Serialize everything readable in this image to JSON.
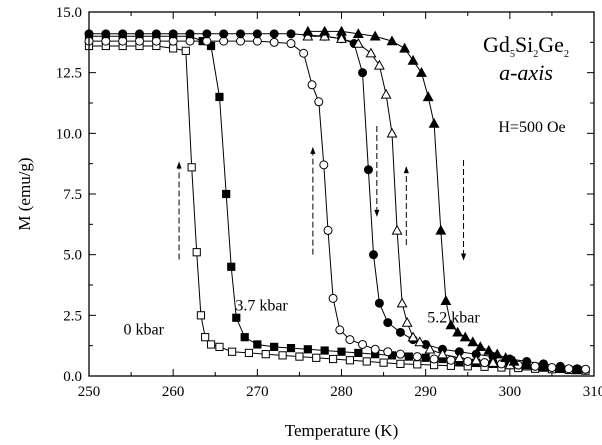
{
  "chart_data": {
    "type": "scatter",
    "title": {
      "formula_parts": [
        "Gd",
        "5",
        "Si",
        "2",
        "Ge",
        "2"
      ],
      "axis": "a-axis"
    },
    "field_label": "H=500 Oe",
    "xlabel": "Temperature (K)",
    "ylabel": "M (emu/g)",
    "xlim": [
      250,
      310
    ],
    "ylim": [
      0,
      15
    ],
    "x_ticks": [
      "250",
      "260",
      "270",
      "280",
      "290",
      "300",
      "310"
    ],
    "y_ticks": [
      "0.0",
      "2.5",
      "5.0",
      "7.5",
      "10.0",
      "12.5",
      "15.0"
    ],
    "series": [
      {
        "marker": "open-square",
        "x": [
          250,
          252,
          254,
          256,
          258,
          260,
          261.5,
          262.2,
          262.8,
          263.3,
          263.8,
          264.5,
          265.5,
          267,
          269,
          271,
          273,
          275,
          277,
          279,
          281,
          283,
          285,
          287,
          289,
          291,
          293,
          295,
          297,
          299,
          301,
          303,
          305,
          307,
          309
        ],
        "y": [
          13.6,
          13.6,
          13.6,
          13.6,
          13.6,
          13.5,
          13.4,
          8.6,
          5.1,
          2.5,
          1.6,
          1.3,
          1.2,
          1.0,
          0.95,
          0.9,
          0.85,
          0.8,
          0.75,
          0.7,
          0.65,
          0.6,
          0.55,
          0.5,
          0.48,
          0.45,
          0.42,
          0.4,
          0.38,
          0.35,
          0.33,
          0.3,
          0.28,
          0.25,
          0.22
        ]
      },
      {
        "marker": "filled-square",
        "x": [
          250,
          252,
          254,
          256,
          258,
          260,
          262,
          263.5,
          264.5,
          265.5,
          266.3,
          266.9,
          267.5,
          268.5,
          270,
          272,
          274,
          276,
          278,
          280,
          282,
          284,
          286,
          288,
          290,
          292,
          294,
          296,
          298,
          300,
          302,
          304,
          306,
          308
        ],
        "y": [
          14.0,
          14.0,
          14.0,
          14.0,
          14.0,
          14.0,
          14.0,
          13.8,
          13.6,
          11.5,
          7.5,
          4.5,
          2.4,
          1.6,
          1.3,
          1.2,
          1.15,
          1.1,
          1.05,
          1.0,
          0.95,
          0.9,
          0.85,
          0.8,
          0.75,
          0.7,
          0.6,
          0.55,
          0.5,
          0.45,
          0.4,
          0.35,
          0.3,
          0.25
        ]
      },
      {
        "marker": "open-circle",
        "x": [
          250,
          252,
          254,
          256,
          258,
          260,
          262,
          264,
          266,
          268,
          270,
          272,
          274,
          275.5,
          276.5,
          277.3,
          277.9,
          278.4,
          279,
          279.8,
          281,
          282.5,
          284,
          285.5,
          287,
          289,
          291,
          293,
          295,
          297,
          299,
          301,
          303,
          305,
          307,
          309
        ],
        "y": [
          13.8,
          13.8,
          13.8,
          13.8,
          13.8,
          13.8,
          13.8,
          13.8,
          13.8,
          13.8,
          13.8,
          13.75,
          13.7,
          13.3,
          12.0,
          11.3,
          8.7,
          6.0,
          3.2,
          1.9,
          1.5,
          1.3,
          1.1,
          1.0,
          0.9,
          0.8,
          0.7,
          0.65,
          0.6,
          0.55,
          0.5,
          0.45,
          0.4,
          0.35,
          0.3,
          0.28
        ]
      },
      {
        "marker": "filled-circle",
        "x": [
          250,
          252,
          254,
          256,
          258,
          260,
          262,
          264,
          266,
          268,
          270,
          272,
          274,
          276,
          278,
          280,
          281.5,
          282.5,
          283.2,
          283.8,
          284.5,
          285.5,
          287,
          288.5,
          290,
          292,
          294,
          296,
          298,
          300,
          302,
          304,
          306,
          308
        ],
        "y": [
          14.1,
          14.1,
          14.1,
          14.1,
          14.1,
          14.1,
          14.1,
          14.1,
          14.1,
          14.1,
          14.1,
          14.1,
          14.1,
          14.05,
          14.0,
          13.9,
          13.7,
          12.5,
          8.5,
          5.0,
          3.0,
          2.2,
          1.8,
          1.5,
          1.3,
          1.1,
          1.0,
          0.9,
          0.8,
          0.7,
          0.6,
          0.5,
          0.4,
          0.3
        ]
      },
      {
        "marker": "open-triangle",
        "x": [
          276,
          278,
          280,
          282,
          283.5,
          284.5,
          285.3,
          286,
          286.6,
          287.2,
          287.8,
          288.5,
          289.3,
          290.5,
          292,
          294,
          296,
          298,
          300,
          302,
          304,
          306,
          308
        ],
        "y": [
          14.0,
          14.0,
          13.9,
          13.7,
          13.3,
          12.8,
          11.6,
          10.0,
          6.0,
          3.0,
          2.2,
          1.6,
          1.4,
          1.1,
          0.9,
          0.75,
          0.65,
          0.55,
          0.45,
          0.4,
          0.35,
          0.3,
          0.25
        ]
      },
      {
        "marker": "filled-triangle",
        "x": [
          276,
          278,
          280,
          282,
          284,
          286,
          287.5,
          288.5,
          289.5,
          290.3,
          291,
          291.8,
          292.4,
          293,
          293.8,
          294.7,
          295.6,
          296.5,
          297.5,
          298.5,
          299.5,
          300.5,
          302,
          304,
          306,
          308
        ],
        "y": [
          14.2,
          14.2,
          14.2,
          14.1,
          14.0,
          13.8,
          13.5,
          13.0,
          12.5,
          11.5,
          10.4,
          6.0,
          3.1,
          2.1,
          1.8,
          1.6,
          1.4,
          1.2,
          1.05,
          0.9,
          0.75,
          0.6,
          0.45,
          0.35,
          0.3,
          0.25
        ]
      }
    ],
    "pressure_labels": [
      {
        "text": "0 kbar",
        "x": 256.5,
        "y": 1.7
      },
      {
        "text": "3.7 kbar",
        "x": 270.5,
        "y": 2.7
      },
      {
        "text": "5.2 kbar",
        "x": 293.3,
        "y": 2.2
      }
    ],
    "arrows": [
      {
        "x": 260.7,
        "y_from": 4.8,
        "y_to": 8.8,
        "direction": "up"
      },
      {
        "x": 276.6,
        "y_from": 5.0,
        "y_to": 9.4,
        "direction": "up"
      },
      {
        "x": 284.2,
        "y_from": 10.3,
        "y_to": 6.6,
        "direction": "down"
      },
      {
        "x": 287.7,
        "y_from": 5.4,
        "y_to": 8.6,
        "direction": "up"
      },
      {
        "x": 294.5,
        "y_from": 8.9,
        "y_to": 4.8,
        "direction": "down"
      }
    ]
  }
}
